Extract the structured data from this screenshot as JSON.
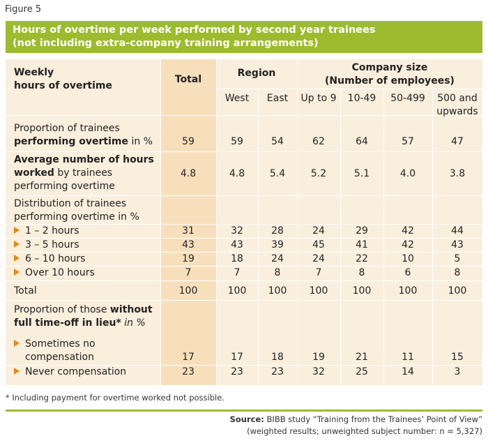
{
  "figure_label": "Figure 5",
  "title": {
    "line1": "Hours of overtime per week performed by second year trainees",
    "line2": "(not including extra-company training arrangements)"
  },
  "header": {
    "row_label_line1": "Weekly",
    "row_label_line2": "hours of overtime",
    "total": "Total",
    "region": "Region",
    "company_size_line1": "Company size",
    "company_size_line2": "(Number of employees)",
    "columns": [
      "West",
      "East",
      "Up to 9",
      "10-49",
      "50-499",
      "500 and",
      "upwards"
    ]
  },
  "rows": {
    "proportion": {
      "label_line1": "Proportion of trainees",
      "label_bold": "performing overtime",
      "label_rest": " in %",
      "values": [
        "59",
        "59",
        "54",
        "62",
        "64",
        "57",
        "47"
      ]
    },
    "average": {
      "label_bold_line1": "Average number of hours",
      "label_bold_line2": "worked",
      "label_rest_line2": " by trainees",
      "label_line3": "performing overtime",
      "values": [
        "4.8",
        "4.8",
        "5.4",
        "5.2",
        "5.1",
        "4.0",
        "3.8"
      ]
    },
    "distribution": {
      "label_line1": "Distribution of trainees",
      "label_line2": "performing overtime in %",
      "items": [
        {
          "label": "1 – 2 hours",
          "values": [
            "31",
            "32",
            "28",
            "24",
            "29",
            "42",
            "44"
          ]
        },
        {
          "label": "3 – 5 hours",
          "values": [
            "43",
            "43",
            "39",
            "45",
            "41",
            "42",
            "43"
          ]
        },
        {
          "label": "6 – 10 hours",
          "values": [
            "19",
            "18",
            "24",
            "24",
            "22",
            "10",
            "5"
          ]
        },
        {
          "label": "Over 10 hours",
          "values": [
            "7",
            "7",
            "8",
            "7",
            "8",
            "6",
            "8"
          ]
        }
      ]
    },
    "total": {
      "label": "Total",
      "values": [
        "100",
        "100",
        "100",
        "100",
        "100",
        "100",
        "100"
      ]
    },
    "without": {
      "label_line1": "Proportion of those ",
      "label_bold_line1": "without",
      "label_bold_line2": "full time-off in lieu*",
      "label_italic_line2": " in %",
      "items": [
        {
          "label_line1": "Sometimes no",
          "label_line2": "compensation",
          "values": [
            "17",
            "17",
            "18",
            "19",
            "21",
            "11",
            "15"
          ]
        },
        {
          "label": "Never compensation",
          "values": [
            "23",
            "23",
            "23",
            "32",
            "25",
            "14",
            "3"
          ]
        }
      ]
    }
  },
  "footnote": "* Including payment for overtime worked not possible.",
  "source": {
    "label": "Source:",
    "text": " BIBB study “Training from the Trainees’ Point of View”",
    "line2": "(weighted results; unweighted subject number: n = 5,327)"
  },
  "colors": {
    "accent_green": "#9dbb2f",
    "table_bg": "#faeedd",
    "total_column_bg": "#f7dfbc",
    "arrow_orange": "#e08a1a"
  }
}
